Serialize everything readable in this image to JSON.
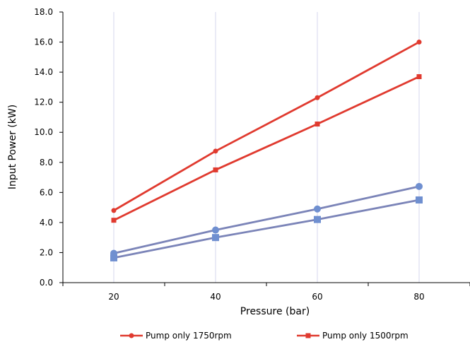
{
  "chart_data": {
    "type": "line",
    "title": "",
    "xlabel": "Pressure (bar)",
    "ylabel": "Input Power (kW)",
    "x": [
      20,
      40,
      60,
      80
    ],
    "x_ticks": [
      "20",
      "40",
      "60",
      "80"
    ],
    "xlim": [
      10,
      90
    ],
    "ylim": [
      0,
      18
    ],
    "y_ticks": [
      "0.0",
      "2.0",
      "4.0",
      "6.0",
      "8.0",
      "10.0",
      "12.0",
      "14.0",
      "16.0",
      "18.0"
    ],
    "grid": "vertical",
    "legend_position": "bottom",
    "series": [
      {
        "name": "Pump only 1750rpm",
        "values": [
          4.8,
          8.75,
          12.3,
          16.0
        ],
        "color": "#e03a2f",
        "marker": "circle",
        "legend": true
      },
      {
        "name": "Pump only 1500rpm",
        "values": [
          4.15,
          7.5,
          10.55,
          13.7
        ],
        "color": "#e03a2f",
        "marker": "square",
        "legend": true
      },
      {
        "values": [
          1.95,
          3.5,
          4.9,
          6.4
        ],
        "color": "#7b84b8",
        "marker": "circle-blue",
        "legend": false
      },
      {
        "values": [
          1.65,
          3.0,
          4.2,
          5.5
        ],
        "color": "#7b84b8",
        "marker": "square-blue",
        "legend": false
      }
    ]
  }
}
